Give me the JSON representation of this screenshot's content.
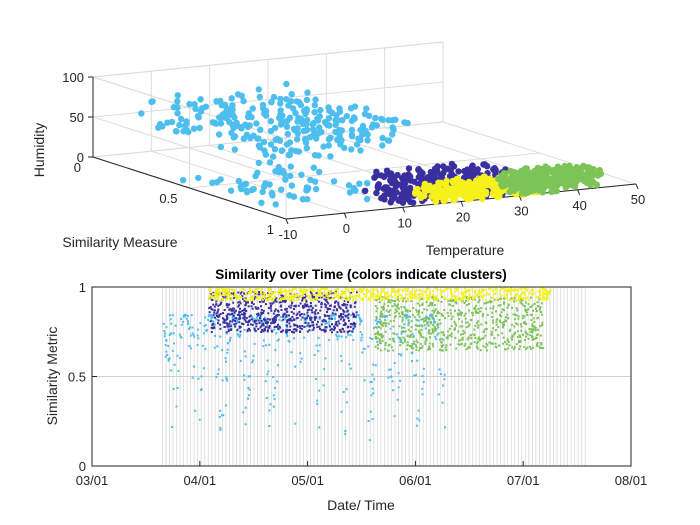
{
  "chart_data": [
    {
      "type": "scatter3d",
      "title": "",
      "xlabel": "Temperature",
      "ylabel": "Similarity Measure",
      "zlabel": "Humidity",
      "xlim": [
        -10,
        50
      ],
      "ylim": [
        0,
        1
      ],
      "zlim": [
        0,
        100
      ],
      "xticks": [
        "-10",
        "0",
        "10",
        "20",
        "30",
        "40",
        "50"
      ],
      "yticks": [
        "0",
        "0.5",
        "1"
      ],
      "zticks": [
        "0",
        "50",
        "100"
      ],
      "grid": true,
      "clusters": [
        {
          "color": "#4DBEEE",
          "temperature_range": [
            -12,
            15
          ],
          "humidity_range": [
            60,
            100
          ],
          "similarity_range": [
            0.3,
            0.95
          ]
        },
        {
          "color": "#4DBEEE",
          "temperature_range": [
            -8,
            12
          ],
          "humidity_range": [
            0,
            15
          ],
          "similarity_range": [
            0.4,
            0.9
          ]
        },
        {
          "color": "#3A2F9E",
          "temperature_range": [
            10,
            30
          ],
          "humidity_range": [
            0,
            30
          ],
          "similarity_range": [
            0.8,
            1.0
          ]
        },
        {
          "color": "#F5F21B",
          "temperature_range": [
            15,
            35
          ],
          "humidity_range": [
            0,
            20
          ],
          "similarity_range": [
            0.9,
            1.0
          ]
        },
        {
          "color": "#7CC457",
          "temperature_range": [
            30,
            45
          ],
          "humidity_range": [
            0,
            20
          ],
          "similarity_range": [
            0.85,
            1.0
          ]
        }
      ]
    },
    {
      "type": "scatter",
      "title": "Similarity over Time (colors indicate clusters)",
      "xlabel": "Date/ Time",
      "ylabel": "Similarity Metric",
      "xticks": [
        "03/01",
        "04/01",
        "05/01",
        "06/01",
        "07/01",
        "08/01"
      ],
      "yticks": [
        "0",
        "0.5",
        "1"
      ],
      "xlim": [
        "03/01",
        "08/01"
      ],
      "ylim": [
        0,
        1
      ],
      "grid": true,
      "day_markers": {
        "start_day": 20,
        "end_day": 140,
        "color": "#d9d9d9"
      },
      "series": [
        {
          "color": "#F5F21B",
          "day_range": [
            33,
            130
          ],
          "value_range": [
            0.93,
            1.0
          ]
        },
        {
          "color": "#3A2F9E",
          "day_range": [
            33,
            75
          ],
          "value_range": [
            0.75,
            0.98
          ]
        },
        {
          "color": "#4DBEEE",
          "day_range": [
            20,
            100
          ],
          "value_range": [
            0.15,
            0.85
          ]
        },
        {
          "color": "#7CC457",
          "day_range": [
            80,
            128
          ],
          "value_range": [
            0.65,
            0.95
          ]
        }
      ]
    }
  ]
}
